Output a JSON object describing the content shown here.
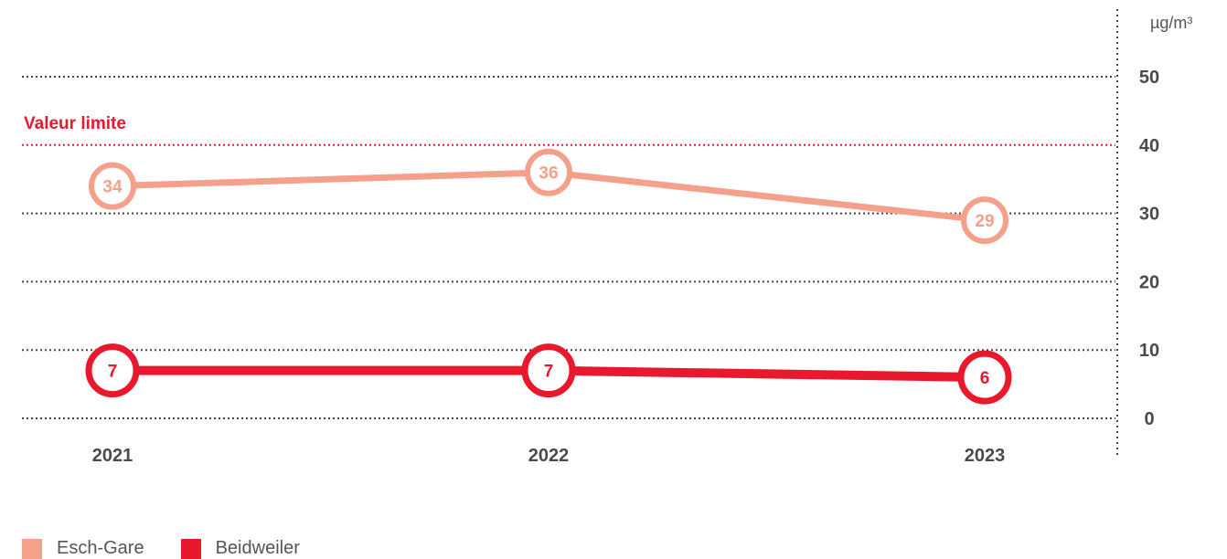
{
  "chart_data": {
    "type": "line",
    "categories": [
      "2021",
      "2022",
      "2023"
    ],
    "series": [
      {
        "name": "Esch-Gare",
        "values": [
          34,
          36,
          29
        ],
        "color": "#f4a08a"
      },
      {
        "name": "Beidweiler",
        "values": [
          7,
          7,
          6
        ],
        "color": "#e8182d"
      }
    ],
    "unit": "µg/m³",
    "ylim": [
      0,
      50
    ],
    "yticks": [
      "0",
      "10",
      "20",
      "30",
      "40",
      "50"
    ],
    "limit": {
      "label": "Valeur limite",
      "value": 40,
      "tick_label": "40",
      "color": "#e8182d"
    },
    "grid": true,
    "legend_position": "bottom-left"
  }
}
